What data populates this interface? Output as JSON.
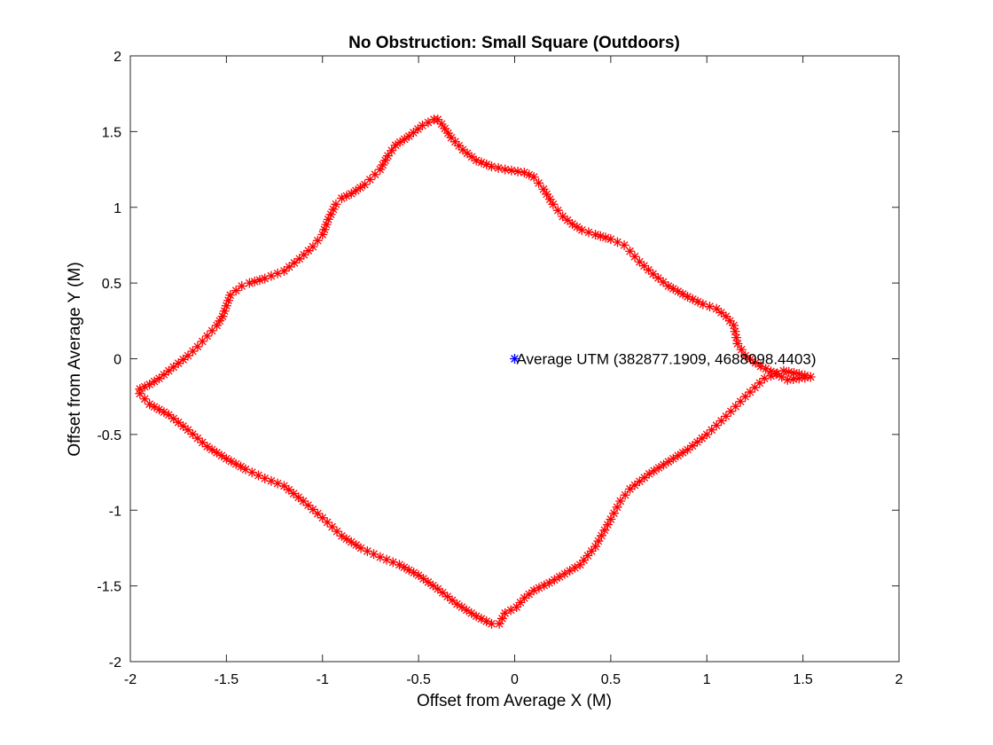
{
  "chart_data": {
    "type": "scatter",
    "title": "No Obstruction: Small Square (Outdoors)",
    "xlabel": "Offset from Average X (M)",
    "ylabel": "Offset from Average Y (M)",
    "xlim": [
      -2,
      2
    ],
    "ylim": [
      -2,
      2
    ],
    "xticks": [
      -2,
      -1.5,
      -1,
      -0.5,
      0,
      0.5,
      1,
      1.5,
      2
    ],
    "xtick_labels": [
      "-2",
      "-1.5",
      "-1",
      "-0.5",
      "0",
      "0.5",
      "1",
      "1.5",
      "2"
    ],
    "yticks": [
      -2,
      -1.5,
      -1,
      -0.5,
      0,
      0.5,
      1,
      1.5,
      2
    ],
    "ytick_labels": [
      "-2",
      "-1.5",
      "-1",
      "-0.5",
      "0",
      "0.5",
      "1",
      "1.5",
      "2"
    ],
    "grid": false,
    "box": true,
    "series": [
      {
        "marker": "asterisk",
        "color": "#ff0000",
        "x": [
          -1.95,
          -1.9,
          -1.85,
          -1.8,
          -1.75,
          -1.7,
          -1.65,
          -1.6,
          -1.55,
          -1.52,
          -1.5,
          -1.48,
          -1.45,
          -1.42,
          -1.38,
          -1.3,
          -1.2,
          -1.12,
          -1.05,
          -1.0,
          -0.97,
          -0.93,
          -0.9,
          -0.85,
          -0.78,
          -0.7,
          -0.66,
          -0.62,
          -0.55,
          -0.48,
          -0.42,
          -0.4,
          -0.38,
          -0.33,
          -0.27,
          -0.2,
          -0.12,
          -0.05,
          0.05,
          0.1,
          0.15,
          0.2,
          0.25,
          0.3,
          0.35,
          0.42,
          0.5,
          0.57,
          0.6,
          0.65,
          0.72,
          0.8,
          0.9,
          0.98,
          1.05,
          1.1,
          1.14,
          1.16,
          1.2,
          1.28,
          1.36,
          1.42,
          1.48,
          1.54,
          1.48,
          1.4,
          1.3,
          1.2,
          1.1,
          1.0,
          0.9,
          0.8,
          0.7,
          0.6,
          0.55,
          0.5,
          0.42,
          0.34,
          0.26,
          0.18,
          0.1,
          0.05,
          0.01,
          -0.05,
          -0.08,
          -0.12,
          -0.2,
          -0.3,
          -0.4,
          -0.5,
          -0.6,
          -0.7,
          -0.8,
          -0.9,
          -1.0,
          -1.1,
          -1.2,
          -1.3,
          -1.4,
          -1.5,
          -1.6,
          -1.7,
          -1.8,
          -1.9,
          -1.95
        ],
        "y": [
          -0.2,
          -0.17,
          -0.13,
          -0.08,
          -0.03,
          0.02,
          0.08,
          0.15,
          0.22,
          0.28,
          0.35,
          0.42,
          0.45,
          0.48,
          0.5,
          0.53,
          0.58,
          0.66,
          0.74,
          0.82,
          0.92,
          1.02,
          1.06,
          1.09,
          1.15,
          1.25,
          1.34,
          1.41,
          1.47,
          1.54,
          1.58,
          1.58,
          1.55,
          1.46,
          1.38,
          1.31,
          1.27,
          1.25,
          1.23,
          1.2,
          1.12,
          1.02,
          0.94,
          0.89,
          0.85,
          0.82,
          0.79,
          0.75,
          0.71,
          0.64,
          0.56,
          0.48,
          0.41,
          0.36,
          0.33,
          0.28,
          0.22,
          0.1,
          0.02,
          -0.05,
          -0.1,
          -0.14,
          -0.13,
          -0.12,
          -0.1,
          -0.08,
          -0.13,
          -0.25,
          -0.38,
          -0.5,
          -0.6,
          -0.68,
          -0.76,
          -0.86,
          -0.94,
          -1.06,
          -1.24,
          -1.36,
          -1.42,
          -1.48,
          -1.53,
          -1.58,
          -1.64,
          -1.68,
          -1.75,
          -1.75,
          -1.7,
          -1.62,
          -1.52,
          -1.43,
          -1.36,
          -1.31,
          -1.25,
          -1.17,
          -1.05,
          -0.94,
          -0.84,
          -0.79,
          -0.73,
          -0.66,
          -0.58,
          -0.47,
          -0.37,
          -0.3,
          -0.23
        ]
      },
      {
        "marker": "asterisk",
        "color": "#0000ff",
        "x": [
          0
        ],
        "y": [
          0
        ]
      }
    ],
    "annotations": [
      {
        "text": "Average UTM (382877.1909, 4688098.4403)",
        "x": 0,
        "y": 0
      }
    ]
  }
}
